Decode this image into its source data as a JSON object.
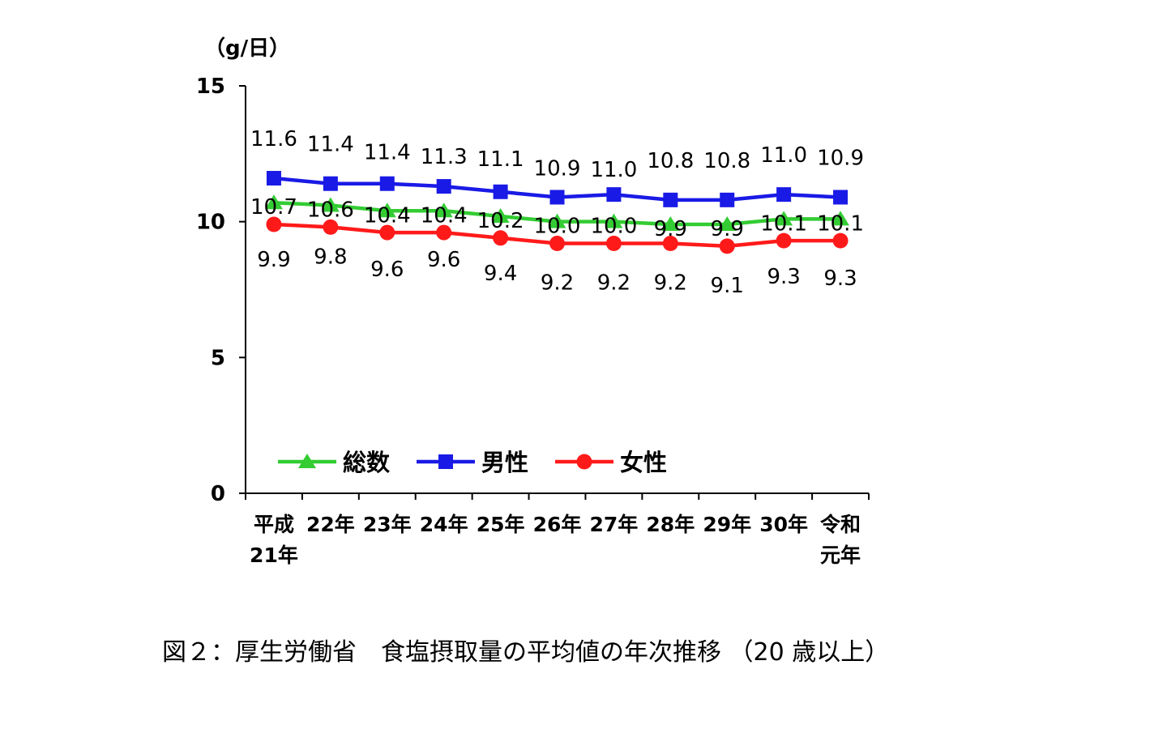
{
  "chart_data": {
    "type": "line",
    "unit_label": "（g/日）",
    "ylim": [
      0,
      15
    ],
    "yticks": [
      "0",
      "5",
      "10",
      "15"
    ],
    "categories": [
      [
        "平成",
        "21年"
      ],
      [
        "22年"
      ],
      [
        "23年"
      ],
      [
        "24年"
      ],
      [
        "25年"
      ],
      [
        "26年"
      ],
      [
        "27年"
      ],
      [
        "28年"
      ],
      [
        "29年"
      ],
      [
        "30年"
      ],
      [
        "令和",
        "元年"
      ]
    ],
    "series": [
      {
        "name": "総数",
        "color": "#33cc33",
        "marker": "triangle",
        "values": [
          10.7,
          10.6,
          10.4,
          10.4,
          10.2,
          10.0,
          10.0,
          9.9,
          9.9,
          10.1,
          10.1
        ],
        "labels": [
          "10.7",
          "10.6",
          "10.4",
          "10.4",
          "10.2",
          "10.0",
          "10.0",
          "9.9",
          "9.9",
          "10.1",
          "10.1"
        ]
      },
      {
        "name": "男性",
        "color": "#1a1ae6",
        "marker": "square",
        "values": [
          11.6,
          11.4,
          11.4,
          11.3,
          11.1,
          10.9,
          11.0,
          10.8,
          10.8,
          11.0,
          10.9
        ],
        "labels": [
          "11.6",
          "11.4",
          "11.4",
          "11.3",
          "11.1",
          "10.9",
          "11.0",
          "10.8",
          "10.8",
          "11.0",
          "10.9"
        ]
      },
      {
        "name": "女性",
        "color": "#ff1a1a",
        "marker": "circle",
        "values": [
          9.9,
          9.8,
          9.6,
          9.6,
          9.4,
          9.2,
          9.2,
          9.2,
          9.1,
          9.3,
          9.3
        ],
        "labels": [
          "9.9",
          "9.8",
          "9.6",
          "9.6",
          "9.4",
          "9.2",
          "9.2",
          "9.2",
          "9.1",
          "9.3",
          "9.3"
        ]
      }
    ],
    "legend": "bottom-inside",
    "grid": false
  },
  "caption": "図２：厚生労働省　食塩摂取量の平均値の年次推移 （20 歳以上）"
}
